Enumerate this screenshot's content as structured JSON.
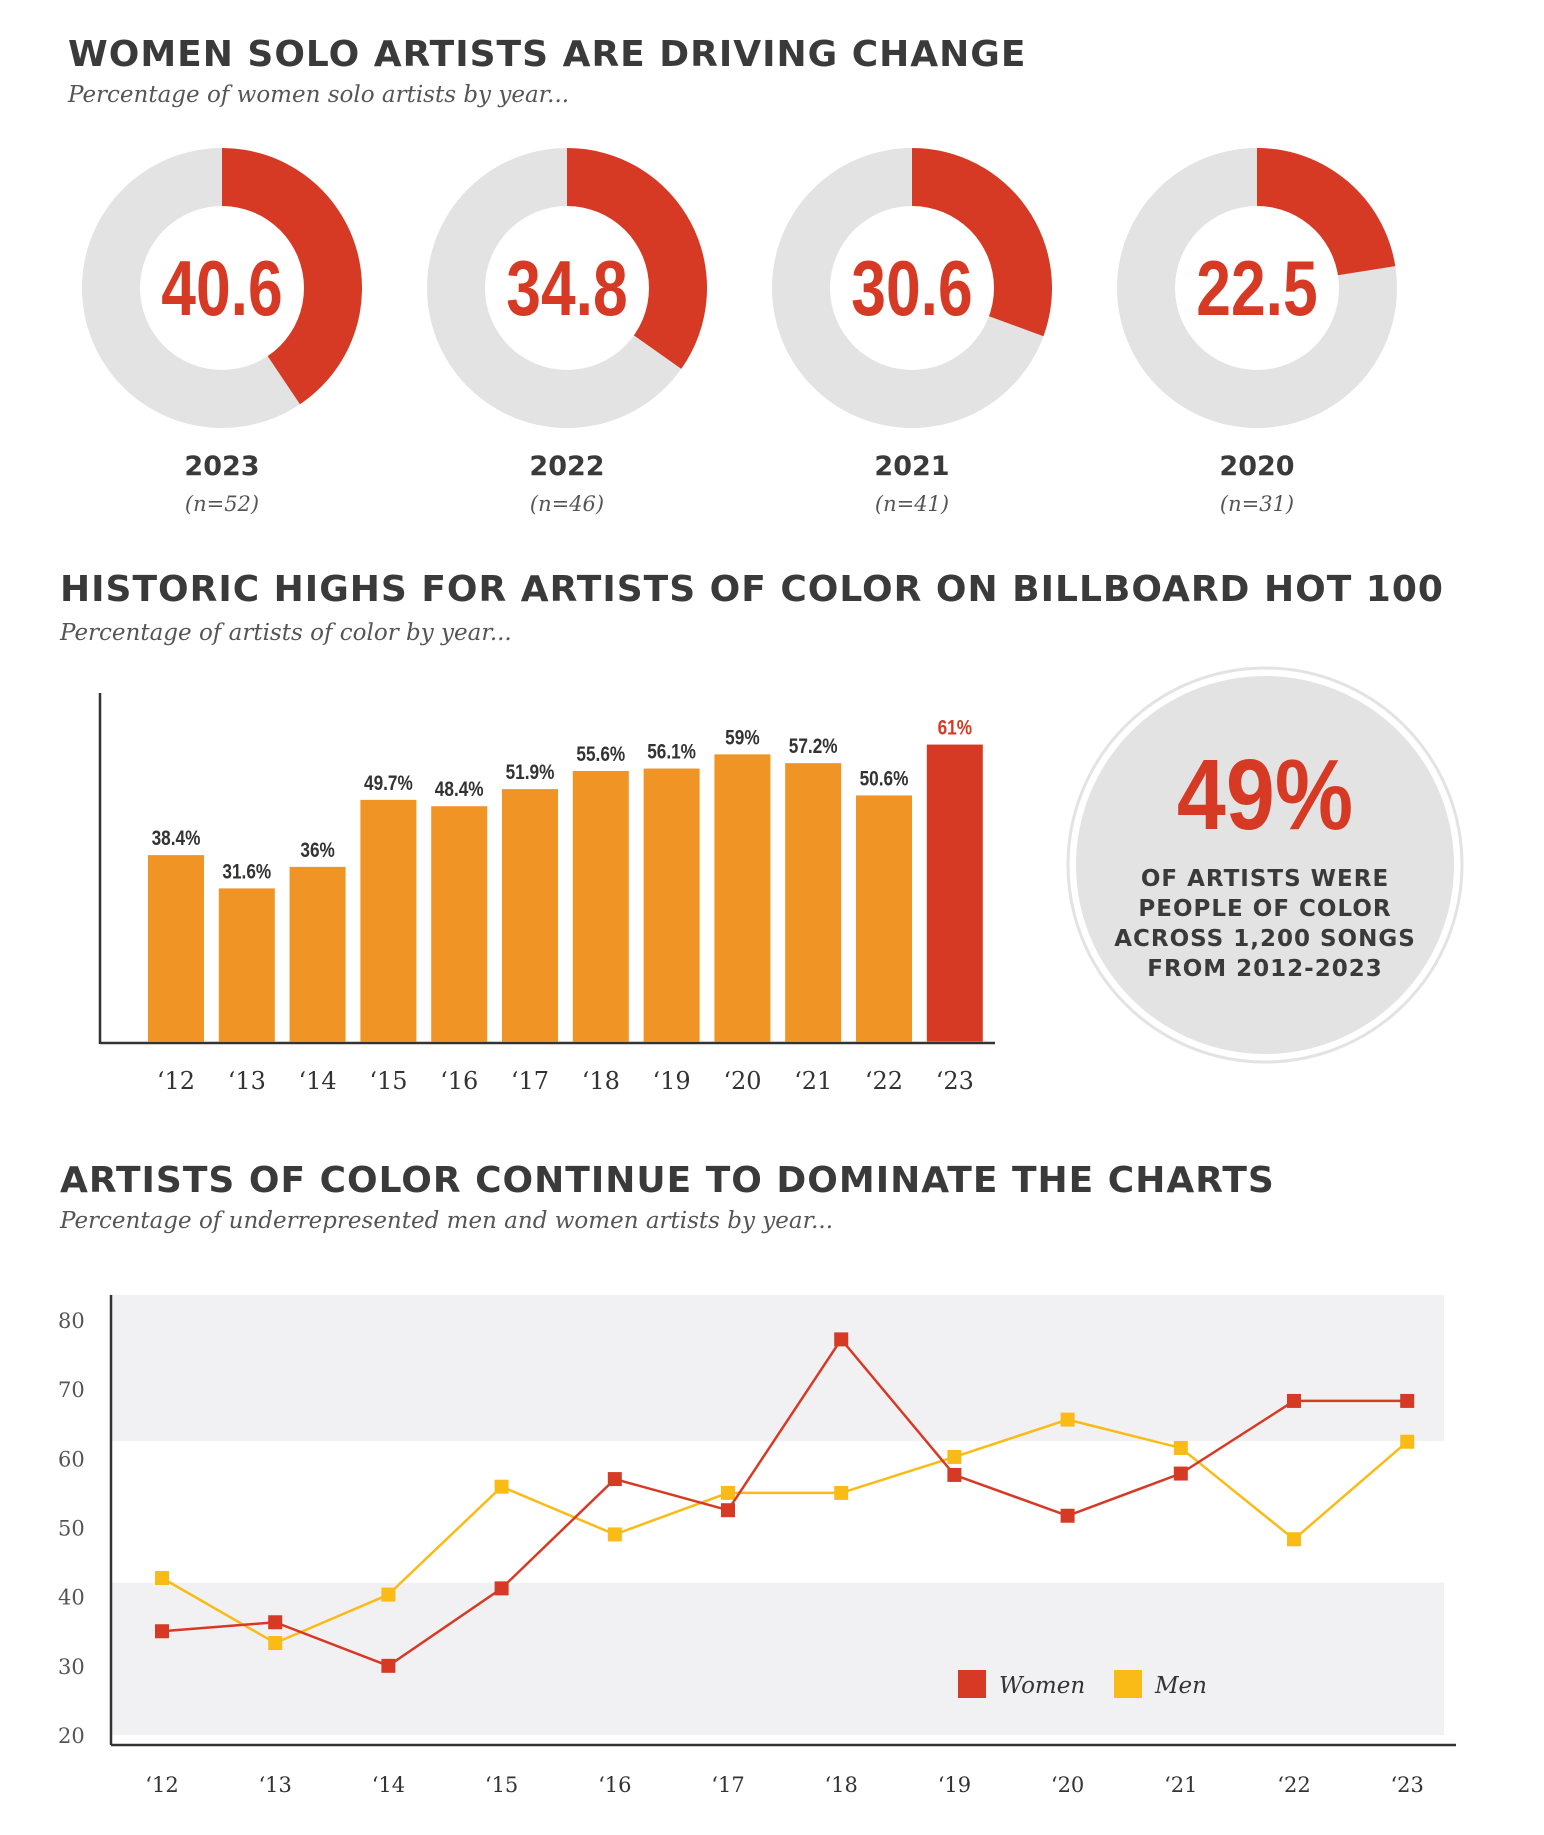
{
  "section1": {
    "title": "WOMEN SOLO ARTISTS ARE DRIVING CHANGE",
    "subtitle": "Percentage of women solo artists by year..."
  },
  "section2": {
    "title": "HISTORIC HIGHS FOR ARTISTS OF COLOR ON BILLBOARD HOT 100",
    "subtitle": "Percentage of artists of color by year...",
    "stat_value": "49%",
    "stat_lines": [
      "OF ARTISTS WERE",
      "PEOPLE OF COLOR",
      "ACROSS 1,200 SONGS",
      "FROM 2012-2023"
    ]
  },
  "section3": {
    "title": "ARTISTS OF COLOR CONTINUE TO DOMINATE THE CHARTS",
    "subtitle": "Percentage of underrepresented men and women artists by year..."
  },
  "colors": {
    "red": "#d63a24",
    "orange": "#f09426",
    "yellow": "#fbbb16",
    "grey": "#e3e3e3",
    "band": "#f1f1f3",
    "text": "#3a3a3a"
  },
  "chart_data": [
    {
      "type": "pie",
      "title": "WOMEN SOLO ARTISTS ARE DRIVING CHANGE",
      "items": [
        {
          "year": "2023",
          "value": 40.6,
          "label": "40.6",
          "n": "(n=52)"
        },
        {
          "year": "2022",
          "value": 34.8,
          "label": "34.8",
          "n": "(n=46)"
        },
        {
          "year": "2021",
          "value": 30.6,
          "label": "30.6",
          "n": "(n=41)"
        },
        {
          "year": "2020",
          "value": 22.5,
          "label": "22.5",
          "n": "(n=31)"
        }
      ]
    },
    {
      "type": "bar",
      "title": "HISTORIC HIGHS FOR ARTISTS OF COLOR ON BILLBOARD HOT 100",
      "categories": [
        "‘12",
        "‘13",
        "‘14",
        "‘15",
        "‘16",
        "‘17",
        "‘18",
        "‘19",
        "‘20",
        "‘21",
        "‘22",
        "‘23"
      ],
      "values": [
        38.4,
        31.6,
        36,
        49.7,
        48.4,
        51.9,
        55.6,
        56.1,
        59,
        57.2,
        50.6,
        61
      ],
      "labels": [
        "38.4%",
        "31.6%",
        "36%",
        "49.7%",
        "48.4%",
        "51.9%",
        "55.6%",
        "56.1%",
        "59%",
        "57.2%",
        "50.6%",
        "61%"
      ],
      "highlight_index": 11,
      "ylim": [
        0,
        65
      ]
    },
    {
      "type": "line",
      "title": "ARTISTS OF COLOR CONTINUE TO DOMINATE THE CHARTS",
      "categories": [
        "‘12",
        "‘13",
        "‘14",
        "‘15",
        "‘16",
        "‘17",
        "‘18",
        "‘19",
        "‘20",
        "‘21",
        "‘22",
        "‘23"
      ],
      "series": [
        {
          "name": "Women",
          "color": "#d63a24",
          "values": [
            35,
            36.3,
            30,
            41.2,
            57,
            52.5,
            77.2,
            57.6,
            51.7,
            57.8,
            68.3,
            68.3
          ]
        },
        {
          "name": "Men",
          "color": "#fbbb16",
          "values": [
            42.7,
            33.3,
            40.3,
            55.9,
            49,
            55,
            55,
            60.2,
            65.6,
            61.5,
            48.3,
            62.4
          ]
        }
      ],
      "yticks": [
        "20",
        "30",
        "40",
        "50",
        "60",
        "70",
        "80"
      ],
      "ylim": [
        20,
        80
      ],
      "bands": [
        [
          62.5,
          80
        ],
        [
          20,
          42
        ]
      ],
      "legend": "bottom-right"
    }
  ]
}
